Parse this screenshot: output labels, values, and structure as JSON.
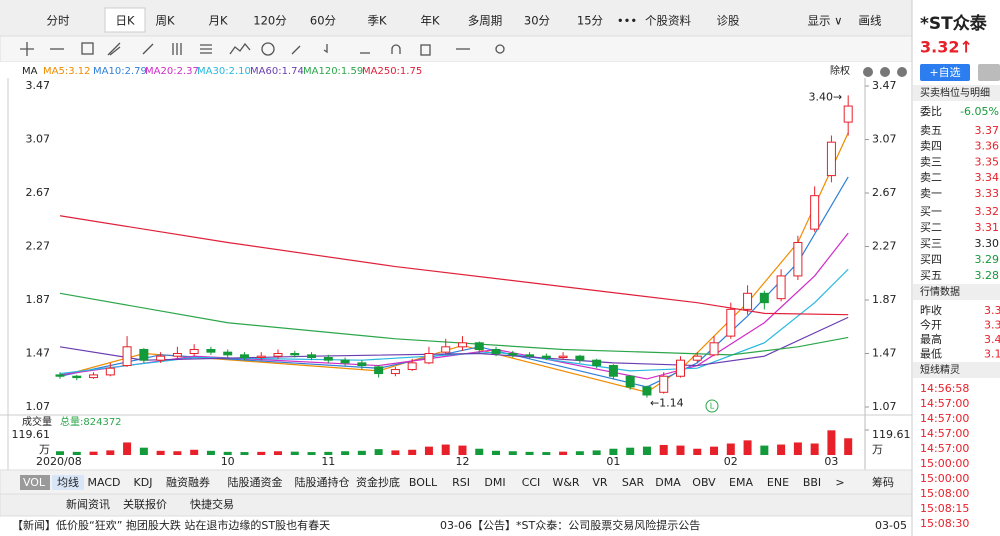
{
  "top_tabs": [
    "分时",
    "日K",
    "周K",
    "月K",
    "120分",
    "60分",
    "季K",
    "年K",
    "多周期",
    "30分",
    "15分",
    "•••",
    "个股资料",
    "诊股",
    "显示 ∨",
    "画线"
  ],
  "ma_label": "MA",
  "ma_legend": [
    "MA5:3.12",
    "MA10:2.79",
    "MA20:2.37",
    "MA30:2.10",
    "MA60:1.74",
    "MA120:1.59",
    "MA250:1.75"
  ],
  "adjust": "除权",
  "chart_data": {
    "type": "candlestick",
    "up_color": "#e8202a",
    "down_color": "#139a3a",
    "categories": [
      "2020/08",
      null,
      null,
      null,
      null,
      null,
      null,
      null,
      null,
      null,
      "10",
      null,
      null,
      null,
      null,
      null,
      "11",
      null,
      null,
      null,
      null,
      null,
      null,
      null,
      "12",
      null,
      null,
      null,
      null,
      null,
      null,
      null,
      null,
      "01",
      null,
      null,
      null,
      null,
      null,
      null,
      "02",
      null,
      null,
      null,
      null,
      null,
      "03",
      null
    ],
    "candles": [
      [
        1.31,
        1.3,
        1.33,
        1.28
      ],
      [
        1.3,
        1.29,
        1.31,
        1.27
      ],
      [
        1.29,
        1.31,
        1.33,
        1.28
      ],
      [
        1.31,
        1.36,
        1.4,
        1.3
      ],
      [
        1.38,
        1.52,
        1.6,
        1.37
      ],
      [
        1.5,
        1.42,
        1.51,
        1.4
      ],
      [
        1.42,
        1.45,
        1.48,
        1.4
      ],
      [
        1.45,
        1.47,
        1.52,
        1.43
      ],
      [
        1.47,
        1.5,
        1.54,
        1.45
      ],
      [
        1.5,
        1.48,
        1.52,
        1.46
      ],
      [
        1.48,
        1.46,
        1.5,
        1.44
      ],
      [
        1.46,
        1.44,
        1.48,
        1.42
      ],
      [
        1.44,
        1.45,
        1.48,
        1.42
      ],
      [
        1.45,
        1.47,
        1.5,
        1.43
      ],
      [
        1.47,
        1.46,
        1.49,
        1.44
      ],
      [
        1.46,
        1.44,
        1.48,
        1.42
      ],
      [
        1.44,
        1.42,
        1.46,
        1.4
      ],
      [
        1.42,
        1.4,
        1.44,
        1.38
      ],
      [
        1.4,
        1.38,
        1.42,
        1.35
      ],
      [
        1.37,
        1.32,
        1.38,
        1.29
      ],
      [
        1.32,
        1.35,
        1.37,
        1.3
      ],
      [
        1.35,
        1.4,
        1.43,
        1.34
      ],
      [
        1.4,
        1.47,
        1.52,
        1.39
      ],
      [
        1.48,
        1.52,
        1.58,
        1.46
      ],
      [
        1.52,
        1.55,
        1.6,
        1.49
      ],
      [
        1.55,
        1.5,
        1.56,
        1.47
      ],
      [
        1.5,
        1.47,
        1.52,
        1.45
      ],
      [
        1.47,
        1.46,
        1.49,
        1.44
      ],
      [
        1.46,
        1.45,
        1.48,
        1.43
      ],
      [
        1.45,
        1.44,
        1.47,
        1.42
      ],
      [
        1.44,
        1.45,
        1.48,
        1.42
      ],
      [
        1.45,
        1.42,
        1.46,
        1.4
      ],
      [
        1.42,
        1.38,
        1.43,
        1.36
      ],
      [
        1.38,
        1.3,
        1.39,
        1.28
      ],
      [
        1.3,
        1.22,
        1.31,
        1.2
      ],
      [
        1.22,
        1.16,
        1.23,
        1.14
      ],
      [
        1.18,
        1.3,
        1.33,
        1.17
      ],
      [
        1.3,
        1.42,
        1.45,
        1.29
      ],
      [
        1.42,
        1.45,
        1.48,
        1.4
      ],
      [
        1.46,
        1.55,
        1.6,
        1.45
      ],
      [
        1.6,
        1.8,
        1.85,
        1.58
      ],
      [
        1.8,
        1.92,
        1.98,
        1.76
      ],
      [
        1.92,
        1.85,
        1.94,
        1.8
      ],
      [
        1.88,
        2.05,
        2.1,
        1.86
      ],
      [
        2.05,
        2.3,
        2.35,
        2.02
      ],
      [
        2.4,
        2.65,
        2.72,
        2.38
      ],
      [
        2.8,
        3.05,
        3.1,
        2.75
      ],
      [
        3.2,
        3.32,
        3.4,
        3.1
      ]
    ],
    "ylim": [
      1.07,
      3.47
    ],
    "yticks": [
      3.47,
      3.07,
      2.67,
      2.27,
      1.87,
      1.47,
      1.07
    ],
    "ma_series": [
      {
        "name": "MA5",
        "color": "#f08c00",
        "x": [
          0,
          5,
          19,
          24,
          35,
          37,
          41,
          44,
          47
        ],
        "values": [
          1.3,
          1.47,
          1.34,
          1.53,
          1.18,
          1.35,
          1.85,
          2.3,
          3.12
        ]
      },
      {
        "name": "MA10",
        "color": "#2f7fd8",
        "x": [
          0,
          6,
          19,
          25,
          35,
          38,
          41,
          44,
          47
        ],
        "values": [
          1.3,
          1.46,
          1.36,
          1.52,
          1.22,
          1.4,
          1.75,
          2.15,
          2.79
        ]
      },
      {
        "name": "MA20",
        "color": "#d02cc8",
        "x": [
          0,
          8,
          19,
          26,
          35,
          38,
          42,
          45,
          47
        ],
        "values": [
          1.31,
          1.45,
          1.38,
          1.5,
          1.28,
          1.38,
          1.7,
          2.05,
          2.37
        ]
      },
      {
        "name": "MA30",
        "color": "#27b8e0",
        "x": [
          0,
          8,
          18,
          26,
          34,
          38,
          42,
          45,
          47
        ],
        "values": [
          1.32,
          1.44,
          1.42,
          1.48,
          1.34,
          1.36,
          1.55,
          1.85,
          2.1
        ]
      },
      {
        "name": "MA60",
        "color": "#6a3db0",
        "x": [
          0,
          5,
          15,
          25,
          33,
          38,
          42,
          47
        ],
        "values": [
          1.52,
          1.42,
          1.45,
          1.47,
          1.4,
          1.38,
          1.45,
          1.74
        ]
      },
      {
        "name": "MA120",
        "color": "#2ca64a",
        "x": [
          0,
          10,
          20,
          30,
          40,
          44,
          47
        ],
        "values": [
          1.92,
          1.7,
          1.58,
          1.5,
          1.46,
          1.52,
          1.59
        ]
      },
      {
        "name": "MA250",
        "color": "#e0203a",
        "x": [
          0,
          10,
          20,
          30,
          38,
          42,
          47
        ],
        "values": [
          2.5,
          2.3,
          2.12,
          1.97,
          1.85,
          1.77,
          1.76
        ]
      }
    ],
    "annotations": [
      "3.40→",
      "←1.14"
    ],
    "volume": {
      "title": "成交量",
      "total": "总量:824372",
      "unit": "万",
      "ylim": [
        0,
        119.61
      ],
      "yticks": [
        119.61
      ],
      "values": [
        18,
        15,
        16,
        22,
        60,
        35,
        20,
        18,
        25,
        20,
        15,
        14,
        15,
        18,
        16,
        14,
        15,
        18,
        20,
        28,
        22,
        25,
        40,
        50,
        45,
        30,
        20,
        18,
        15,
        14,
        16,
        18,
        22,
        30,
        35,
        40,
        48,
        45,
        30,
        40,
        55,
        70,
        45,
        50,
        60,
        55,
        118,
        80
      ]
    }
  },
  "indicator_tabs": [
    "VOL",
    "均线",
    "MACD",
    "KDJ",
    "融资融券",
    "陆股通资金",
    "陆股通持仓",
    "资金抄底",
    "BOLL",
    "RSI",
    "DMI",
    "CCI",
    "W&R",
    "VR",
    "SAR",
    "DMA",
    "OBV",
    "EMA",
    "ENE",
    "BBI",
    ">"
  ],
  "chips": "筹码",
  "news_tabs": [
    "新闻资讯",
    "关联报价",
    "快捷交易"
  ],
  "news": [
    {
      "text": "【新闻】低价股“狂欢” 抱团股大跌 站在退市边缘的ST股也有春天",
      "date": "03-06"
    },
    {
      "text": "【公告】*ST众泰：公司股票交易风险提示公告",
      "date": "03-05"
    }
  ],
  "sidebar": {
    "name": "*ST众泰",
    "price": "3.32↑",
    "add": "+自选",
    "book_title": "买卖档位与明细",
    "ratio_label": "委比",
    "ratio": "-6.05%",
    "asks": [
      [
        "卖五",
        "3.37"
      ],
      [
        "卖四",
        "3.36"
      ],
      [
        "卖三",
        "3.35"
      ],
      [
        "卖二",
        "3.34"
      ],
      [
        "卖一",
        "3.33"
      ]
    ],
    "bids": [
      [
        "买一",
        "3.32"
      ],
      [
        "买二",
        "3.31"
      ],
      [
        "买三",
        "3.30"
      ],
      [
        "买四",
        "3.29"
      ],
      [
        "买五",
        "3.28"
      ]
    ],
    "quote_title": "行情数据",
    "quotes": [
      [
        "昨收",
        "3.3"
      ],
      [
        "今开",
        "3.3"
      ],
      [
        "最高",
        "3.4"
      ],
      [
        "最低",
        "3.1"
      ]
    ],
    "sprite_title": "短线精灵",
    "times": [
      "14:56:58",
      "14:57:00",
      "14:57:00",
      "14:57:00",
      "14:57:00",
      "15:00:00",
      "15:00:00",
      "15:08:00",
      "15:08:15",
      "15:08:30"
    ]
  }
}
